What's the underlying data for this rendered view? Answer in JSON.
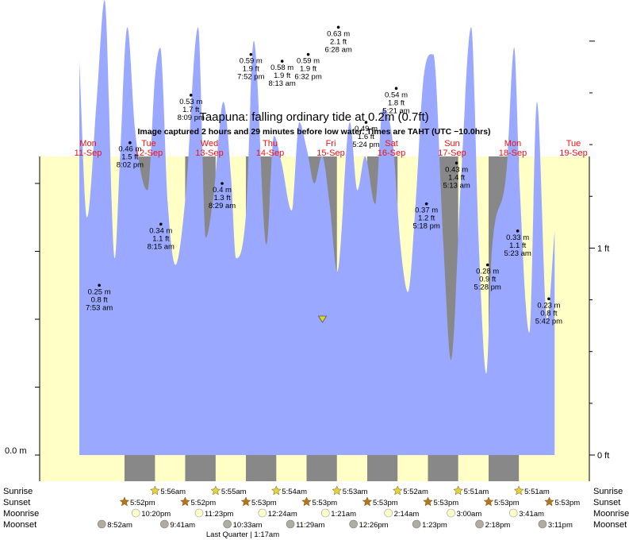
{
  "chart_data": {
    "type": "area",
    "title": "Taapuna: falling  ordinary tide at 0.2m (0.7ft)",
    "subtitle": "Image captured 2 hours and 29 minutes before low water. Times are TAHT (UTC −10.0hrs)",
    "y_unit": "m",
    "ylim": [
      -0.08,
      0.74
    ],
    "y_left_ticks": [
      {
        "value": 0.0,
        "label": "0.0 m"
      }
    ],
    "y_right_ticks": [
      {
        "value": 0.0,
        "label": "0 ft"
      },
      {
        "value": 0.3048,
        "label": "1 ft"
      }
    ],
    "days": [
      {
        "name": "Mon",
        "date": "11-Sep"
      },
      {
        "name": "Tue",
        "date": "12-Sep"
      },
      {
        "name": "Wed",
        "date": "13-Sep"
      },
      {
        "name": "Thu",
        "date": "14-Sep"
      },
      {
        "name": "Fri",
        "date": "15-Sep"
      },
      {
        "name": "Sat",
        "date": "16-Sep"
      },
      {
        "name": "Sun",
        "date": "17-Sep"
      },
      {
        "name": "Mon",
        "date": "18-Sep"
      },
      {
        "name": "Tue",
        "date": "19-Sep"
      }
    ],
    "extremes": [
      {
        "t": "2023-09-11 07:53",
        "m": "0.25 m",
        "ft": "0.8 ft",
        "time": "7:53 am"
      },
      {
        "t": "2023-09-11 20:02",
        "m": "0.46 m",
        "ft": "1.5 ft",
        "time": "8:02 pm"
      },
      {
        "t": "2023-09-12 08:15",
        "m": "0.34 m",
        "ft": "1.1 ft",
        "time": "8:15 am"
      },
      {
        "t": "2023-09-12 20:09",
        "m": "0.53 m",
        "ft": "1.7 ft",
        "time": "8:09 pm"
      },
      {
        "t": "2023-09-13 08:29",
        "m": "0.4 m",
        "ft": "1.3 ft",
        "time": "8:29 am"
      },
      {
        "t": "2023-09-13 19:52",
        "m": "0.59 m",
        "ft": "1.9 ft",
        "time": "7:52 pm"
      },
      {
        "t": "2023-09-14 08:13",
        "m": "0.58 m",
        "ft": "1.9 ft",
        "time": "8:13 am"
      },
      {
        "t": "2023-09-14 18:32",
        "m": "0.59 m",
        "ft": "1.9 ft",
        "time": "6:32 pm"
      },
      {
        "t": "2023-09-15 06:28",
        "m": "0.63 m",
        "ft": "2.1 ft",
        "time": "6:28 am"
      },
      {
        "t": "2023-09-15 17:24",
        "m": "0.49 m",
        "ft": "1.6 ft",
        "time": "5:24 pm"
      },
      {
        "t": "2023-09-16 05:21",
        "m": "0.54 m",
        "ft": "1.8 ft",
        "time": "5:21 am"
      },
      {
        "t": "2023-09-16 17:18",
        "m": "0.37 m",
        "ft": "1.2 ft",
        "time": "5:18 pm"
      },
      {
        "t": "2023-09-17 05:13",
        "m": "0.43 m",
        "ft": "1.4 ft",
        "time": "5:13 am"
      },
      {
        "t": "2023-09-17 17:28",
        "m": "0.28 m",
        "ft": "0.9 ft",
        "time": "5:28 pm"
      },
      {
        "t": "2023-09-18 05:23",
        "m": "0.33 m",
        "ft": "1.1 ft",
        "time": "5:23 am"
      },
      {
        "t": "2023-09-18 17:42",
        "m": "0.23 m",
        "ft": "0.8 ft",
        "time": "5:42 pm"
      }
    ],
    "curve": {
      "t_start": "2023-09-11 00:00",
      "t_end": "2023-09-18 20:00",
      "x": [
        "2023-09-11 00:00",
        "2023-09-11 03:00",
        "2023-09-11 07:00",
        "2023-09-11 10:00",
        "2023-09-11 14:00",
        "2023-09-11 16:00",
        "2023-09-11 19:00",
        "2023-09-11 22:00",
        "2023-09-12 03:00",
        "2023-09-12 06:00",
        "2023-09-12 08:00",
        "2023-09-12 11:00",
        "2023-09-12 14:00",
        "2023-09-12 18:00",
        "2023-09-12 23:00",
        "2023-09-13 02:00",
        "2023-09-13 05:00",
        "2023-09-13 09:00",
        "2023-09-13 12:00",
        "2023-09-13 14:00",
        "2023-09-13 18:00",
        "2023-09-13 21:00",
        "2023-09-14 02:00",
        "2023-09-14 05:00",
        "2023-09-14 08:00",
        "2023-09-14 12:00",
        "2023-09-14 15:00",
        "2023-09-14 18:00",
        "2023-09-14 21:00",
        "2023-09-15 00:00",
        "2023-09-15 03:00",
        "2023-09-15 06:00",
        "2023-09-15 11:00",
        "2023-09-15 14:00",
        "2023-09-15 17:00",
        "2023-09-15 21:00",
        "2023-09-16 00:00",
        "2023-09-16 04:00",
        "2023-09-16 07:00",
        "2023-09-16 10:00",
        "2023-09-16 13:00",
        "2023-09-16 16:00",
        "2023-09-16 20:00",
        "2023-09-17 00:00",
        "2023-09-17 03:00",
        "2023-09-17 07:00",
        "2023-09-17 11:00",
        "2023-09-17 14:00",
        "2023-09-17 17:00",
        "2023-09-17 19:00",
        "2023-09-18 01:00",
        "2023-09-18 04:00",
        "2023-09-18 06:00",
        "2023-09-18 10:00",
        "2023-09-18 13:00",
        "2023-09-18 17:00",
        "2023-09-18 20:00"
      ],
      "y": [
        0.58,
        0.35,
        0.53,
        0.67,
        0.29,
        0.43,
        0.63,
        0.48,
        0.39,
        0.56,
        0.6,
        0.37,
        0.28,
        0.38,
        0.63,
        0.32,
        0.38,
        0.52,
        0.41,
        0.29,
        0.36,
        0.61,
        0.31,
        0.47,
        0.43,
        0.36,
        0.49,
        0.45,
        0.4,
        0.44,
        0.37,
        0.27,
        0.49,
        0.39,
        0.44,
        0.37,
        0.51,
        0.46,
        0.31,
        0.24,
        0.37,
        0.55,
        0.59,
        0.31,
        0.14,
        0.41,
        0.63,
        0.31,
        0.12,
        0.29,
        0.42,
        0.6,
        0.41,
        0.18,
        0.52,
        0.2,
        0.33
      ],
      "fill_color": "#9aa8ff"
    },
    "current": {
      "t": "2023-09-15 00:10",
      "value_m": 0.2,
      "marker_color": "#d9d926"
    },
    "night_color": "#888888",
    "day_color": "#ffffc6",
    "nights": [
      [
        "2023-09-11 17:52",
        "2023-09-12 05:56"
      ],
      [
        "2023-09-12 17:52",
        "2023-09-13 05:55"
      ],
      [
        "2023-09-13 17:53",
        "2023-09-14 05:54"
      ],
      [
        "2023-09-14 17:53",
        "2023-09-15 05:53"
      ],
      [
        "2023-09-15 17:53",
        "2023-09-16 05:52"
      ],
      [
        "2023-09-16 17:53",
        "2023-09-17 05:51"
      ],
      [
        "2023-09-17 17:53",
        "2023-09-18 05:51"
      ]
    ]
  },
  "almanac": {
    "row_labels": {
      "sunrise": "Sunrise",
      "sunset": "Sunset",
      "moonrise": "Moonrise",
      "moonset": "Moonset"
    },
    "sunrise": [
      {
        "t": "2023-09-12 05:56",
        "label": "5:56am"
      },
      {
        "t": "2023-09-13 05:55",
        "label": "5:55am"
      },
      {
        "t": "2023-09-14 05:54",
        "label": "5:54am"
      },
      {
        "t": "2023-09-15 05:53",
        "label": "5:53am"
      },
      {
        "t": "2023-09-16 05:52",
        "label": "5:52am"
      },
      {
        "t": "2023-09-17 05:51",
        "label": "5:51am"
      },
      {
        "t": "2023-09-18 05:51",
        "label": "5:51am"
      }
    ],
    "sunset": [
      {
        "t": "2023-09-11 17:52",
        "label": "5:52pm"
      },
      {
        "t": "2023-09-12 17:52",
        "label": "5:52pm"
      },
      {
        "t": "2023-09-13 17:53",
        "label": "5:53pm"
      },
      {
        "t": "2023-09-14 17:53",
        "label": "5:53pm"
      },
      {
        "t": "2023-09-15 17:53",
        "label": "5:53pm"
      },
      {
        "t": "2023-09-16 17:53",
        "label": "5:53pm"
      },
      {
        "t": "2023-09-17 17:53",
        "label": "5:53pm"
      },
      {
        "t": "2023-09-18 17:53",
        "label": "5:53pm"
      }
    ],
    "moonrise": [
      {
        "t": "2023-09-11 22:20",
        "label": "10:20pm"
      },
      {
        "t": "2023-09-12 23:23",
        "label": "11:23pm"
      },
      {
        "t": "2023-09-14 00:24",
        "label": "12:24am"
      },
      {
        "t": "2023-09-15 01:21",
        "label": "1:21am"
      },
      {
        "t": "2023-09-16 02:14",
        "label": "2:14am"
      },
      {
        "t": "2023-09-17 03:00",
        "label": "3:00am"
      },
      {
        "t": "2023-09-18 03:41",
        "label": "3:41am"
      }
    ],
    "moonset": [
      {
        "t": "2023-09-11 08:52",
        "label": "8:52am"
      },
      {
        "t": "2023-09-12 09:41",
        "label": "9:41am"
      },
      {
        "t": "2023-09-13 10:33",
        "label": "10:33am"
      },
      {
        "t": "2023-09-14 11:29",
        "label": "11:29am"
      },
      {
        "t": "2023-09-15 12:26",
        "label": "12:26pm"
      },
      {
        "t": "2023-09-16 13:23",
        "label": "1:23pm"
      },
      {
        "t": "2023-09-17 14:18",
        "label": "2:18pm"
      },
      {
        "t": "2023-09-18 15:11",
        "label": "3:11pm"
      }
    ],
    "moon_phase": "Last Quarter | 1:17am",
    "colors": {
      "sunrise_star": "#e8d23a",
      "sunset_star": "#b8741a",
      "moonrise_disc": "#ffffcc",
      "moonset_disc": "#b0aca0"
    }
  }
}
